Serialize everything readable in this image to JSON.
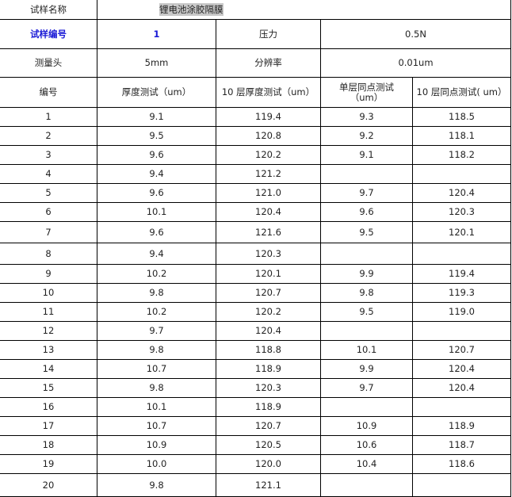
{
  "info": {
    "sample_name_label": "试样名称",
    "sample_name": "锂电池涂胶隔膜",
    "sample_no_label": "试样编号",
    "sample_no": "1",
    "pressure_label": "压力",
    "pressure": "0.5N",
    "probe_label": "测量头",
    "probe": "5mm",
    "resolution_label": "分辨率",
    "resolution": "0.01um"
  },
  "colors": {
    "accent": "#1a1ad6",
    "highlight": "#c8c8c8"
  },
  "columns": [
    "编号",
    "厚度测试（um）",
    "10 层厚度测试（um）",
    "单层同点测试（um）",
    "10 层同点测试( um）"
  ],
  "rows": [
    [
      "1",
      "9.1",
      "119.4",
      "9.3",
      "118.5"
    ],
    [
      "2",
      "9.5",
      "120.8",
      "9.2",
      "118.1"
    ],
    [
      "3",
      "9.6",
      "120.2",
      "9.1",
      "118.2"
    ],
    [
      "4",
      "9.4",
      "121.2",
      "",
      ""
    ],
    [
      "5",
      "9.6",
      "121.0",
      "9.7",
      "120.4"
    ],
    [
      "6",
      "10.1",
      "120.4",
      "9.6",
      "120.3"
    ],
    [
      "7",
      "9.6",
      "121.6",
      "9.5",
      "120.1"
    ],
    [
      "8",
      "9.4",
      "120.3",
      "",
      ""
    ],
    [
      "9",
      "10.2",
      "120.1",
      "9.9",
      "119.4"
    ],
    [
      "10",
      "9.8",
      "120.7",
      "9.8",
      "119.3"
    ],
    [
      "11",
      "10.2",
      "120.2",
      "9.5",
      "119.0"
    ],
    [
      "12",
      "9.7",
      "120.4",
      "",
      ""
    ],
    [
      "13",
      "9.8",
      "118.8",
      "10.1",
      "120.7"
    ],
    [
      "14",
      "10.7",
      "118.9",
      "9.9",
      "120.4"
    ],
    [
      "15",
      "9.8",
      "120.3",
      "9.7",
      "120.4"
    ],
    [
      "16",
      "10.1",
      "118.9",
      "",
      ""
    ],
    [
      "17",
      "10.7",
      "120.7",
      "10.9",
      "118.9"
    ],
    [
      "18",
      "10.9",
      "120.5",
      "10.6",
      "118.7"
    ],
    [
      "19",
      "10.0",
      "120.0",
      "10.4",
      "118.6"
    ],
    [
      "20",
      "9.8",
      "121.1",
      "",
      ""
    ]
  ]
}
